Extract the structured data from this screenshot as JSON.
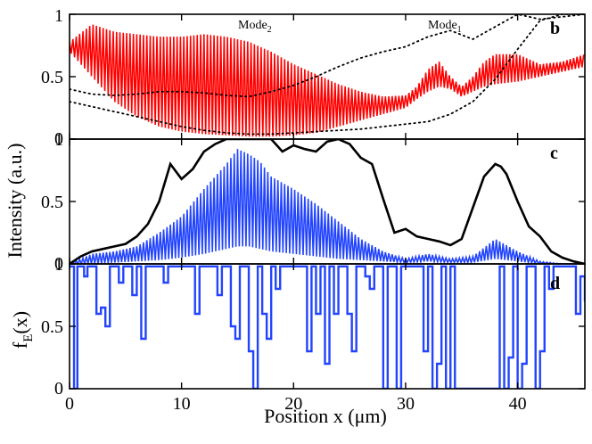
{
  "chart_data": [
    {
      "type": "line",
      "panel": "b",
      "panel_label": "b",
      "xlabel": "",
      "ylabel": "",
      "xlim": [
        0,
        46
      ],
      "ylim": [
        0,
        1
      ],
      "ytick_labels": [
        "0",
        "0.5",
        "1"
      ],
      "annotations": [
        {
          "text": "Mode",
          "sub": "2",
          "x": 18,
          "y": 0.96
        },
        {
          "text": "Mode",
          "sub": "1",
          "x": 33.5,
          "y": 0.93
        }
      ],
      "series": [
        {
          "name": "intensity (red)",
          "color": "#ff0000",
          "style": "oscillating",
          "x": [
            0,
            2,
            4,
            6,
            8,
            10,
            12,
            14,
            16,
            18,
            20,
            22,
            24,
            26,
            28,
            30,
            31,
            32,
            33,
            34,
            35,
            36,
            37,
            38,
            40,
            42,
            44,
            46
          ],
          "upper": [
            0.78,
            0.92,
            0.86,
            0.84,
            0.82,
            0.82,
            0.84,
            0.82,
            0.78,
            0.7,
            0.6,
            0.52,
            0.44,
            0.38,
            0.34,
            0.35,
            0.42,
            0.56,
            0.62,
            0.5,
            0.42,
            0.5,
            0.62,
            0.68,
            0.68,
            0.6,
            0.62,
            0.68
          ],
          "lower": [
            0.7,
            0.5,
            0.3,
            0.18,
            0.1,
            0.06,
            0.04,
            0.03,
            0.02,
            0.02,
            0.03,
            0.05,
            0.1,
            0.15,
            0.2,
            0.25,
            0.32,
            0.38,
            0.42,
            0.4,
            0.34,
            0.38,
            0.42,
            0.44,
            0.46,
            0.5,
            0.54,
            0.58
          ]
        },
        {
          "name": "mode profile (dotted upper)",
          "color": "#000000",
          "style": "dotted",
          "x": [
            0,
            2,
            4,
            6,
            8,
            10,
            12,
            14,
            16,
            18,
            20,
            22,
            24,
            26,
            28,
            30,
            32,
            34,
            36,
            38,
            40,
            42,
            44,
            46
          ],
          "y": [
            0.4,
            0.36,
            0.35,
            0.36,
            0.38,
            0.38,
            0.37,
            0.35,
            0.34,
            0.38,
            0.43,
            0.5,
            0.58,
            0.65,
            0.7,
            0.74,
            0.82,
            0.87,
            0.8,
            0.9,
            1.0,
            0.96,
            0.98,
            1.0
          ]
        },
        {
          "name": "mode profile (dotted lower)",
          "color": "#000000",
          "style": "dotted",
          "x": [
            0,
            2,
            4,
            6,
            8,
            10,
            12,
            14,
            16,
            18,
            20,
            22,
            24,
            26,
            28,
            30,
            32,
            34,
            36,
            38,
            40,
            42,
            44,
            46
          ],
          "y": [
            0.3,
            0.26,
            0.22,
            0.18,
            0.14,
            0.1,
            0.07,
            0.05,
            0.04,
            0.04,
            0.05,
            0.06,
            0.07,
            0.08,
            0.1,
            0.12,
            0.14,
            0.2,
            0.3,
            0.48,
            0.72,
            0.95,
            1.0,
            1.0
          ]
        }
      ]
    },
    {
      "type": "line",
      "panel": "c",
      "panel_label": "c",
      "xlabel": "",
      "ylabel": "Intensity (a.u.)",
      "xlim": [
        0,
        46
      ],
      "ylim": [
        0,
        1
      ],
      "ytick_labels": [
        "0",
        "0.5",
        "1"
      ],
      "series": [
        {
          "name": "intensity (blue)",
          "color": "#2244ff",
          "style": "oscillating",
          "x": [
            0,
            2,
            4,
            6,
            8,
            10,
            12,
            14,
            15,
            16,
            17,
            18,
            20,
            22,
            24,
            26,
            28,
            30,
            32,
            34,
            36,
            38,
            40,
            42,
            44,
            46
          ],
          "upper": [
            0.0,
            0.08,
            0.1,
            0.14,
            0.25,
            0.38,
            0.6,
            0.8,
            0.92,
            0.88,
            0.82,
            0.7,
            0.6,
            0.48,
            0.34,
            0.2,
            0.1,
            0.04,
            0.08,
            0.04,
            0.06,
            0.2,
            0.1,
            0.02,
            0.0,
            0.0
          ],
          "lower": [
            0.0,
            0.0,
            0.01,
            0.02,
            0.03,
            0.05,
            0.08,
            0.12,
            0.14,
            0.14,
            0.12,
            0.1,
            0.08,
            0.06,
            0.04,
            0.03,
            0.02,
            0.01,
            0.02,
            0.01,
            0.01,
            0.04,
            0.02,
            0.0,
            0.0,
            0.0
          ]
        },
        {
          "name": "envelope (black)",
          "color": "#000000",
          "style": "solid",
          "x": [
            0,
            1,
            2,
            3,
            4,
            5,
            6,
            7,
            8,
            9,
            10,
            11,
            12,
            13,
            14,
            15,
            16,
            17,
            17.5,
            18,
            19,
            20,
            21,
            22,
            23,
            24,
            25,
            26,
            27,
            28,
            29,
            30,
            31,
            32,
            33,
            34,
            35,
            36,
            37,
            38,
            38.5,
            39,
            40,
            41,
            42,
            43,
            44,
            45,
            46
          ],
          "y": [
            0.0,
            0.06,
            0.1,
            0.12,
            0.14,
            0.16,
            0.22,
            0.32,
            0.5,
            0.8,
            0.68,
            0.76,
            0.9,
            0.96,
            1.0,
            1.02,
            1.08,
            1.12,
            1.2,
            1.08,
            0.9,
            0.95,
            0.92,
            0.9,
            0.98,
            1.0,
            0.96,
            0.85,
            0.8,
            0.52,
            0.25,
            0.28,
            0.22,
            0.2,
            0.18,
            0.15,
            0.2,
            0.45,
            0.7,
            0.8,
            0.78,
            0.72,
            0.5,
            0.3,
            0.22,
            0.1,
            0.05,
            0.02,
            0.0
          ]
        }
      ]
    },
    {
      "type": "line",
      "panel": "d",
      "panel_label": "d",
      "xlabel": "Position x (μm)",
      "ylabel": "f",
      "ylabel_sub": "E",
      "ylabel_suffix": "(x)",
      "xlim": [
        0,
        46
      ],
      "ylim": [
        0,
        1
      ],
      "xtick_labels": [
        "0",
        "10",
        "20",
        "30",
        "40"
      ],
      "xtick_values": [
        0,
        10,
        20,
        30,
        40
      ],
      "ytick_labels": [
        "0",
        "0.5",
        "1"
      ],
      "series": [
        {
          "name": "f_E(x)",
          "color": "#2244ff",
          "style": "step",
          "x": [
            0,
            0.4,
            0.7,
            1.0,
            1.3,
            1.6,
            2.0,
            2.4,
            2.8,
            3.2,
            3.6,
            4.0,
            4.4,
            4.8,
            5.2,
            5.6,
            6.0,
            6.4,
            6.8,
            7.2,
            7.6,
            8.0,
            8.4,
            8.8,
            9.2,
            9.6,
            10.0,
            10.4,
            10.8,
            11.2,
            11.6,
            12.0,
            12.4,
            12.8,
            13.2,
            13.6,
            14.0,
            14.4,
            14.8,
            15.2,
            15.6,
            16.0,
            16.4,
            16.8,
            17.2,
            17.6,
            18.0,
            18.4,
            18.8,
            19.2,
            19.6,
            20.0,
            20.4,
            20.8,
            21.2,
            21.6,
            22.0,
            22.4,
            22.8,
            23.2,
            23.6,
            24.0,
            24.4,
            24.8,
            25.2,
            25.6,
            26.0,
            26.4,
            26.8,
            27.2,
            27.6,
            28.0,
            28.4,
            28.8,
            29.2,
            29.6,
            30.0,
            30.4,
            30.8,
            31.2,
            31.6,
            32.0,
            32.4,
            32.8,
            33.2,
            33.6,
            34.0,
            34.4,
            34.8,
            35.2,
            35.6,
            36.0,
            36.4,
            36.8,
            37.2,
            37.6,
            38.0,
            38.4,
            38.8,
            39.2,
            39.6,
            40.0,
            40.4,
            40.8,
            41.2,
            41.6,
            42.0,
            42.4,
            42.8,
            43.2,
            43.6,
            44.0,
            44.4,
            44.8,
            45.2,
            45.6,
            46.0
          ],
          "y": [
            0.98,
            0.0,
            0.98,
            0.98,
            0.9,
            0.98,
            0.98,
            0.6,
            0.65,
            0.5,
            0.98,
            0.98,
            0.85,
            0.98,
            0.98,
            0.75,
            0.98,
            0.4,
            0.98,
            0.98,
            0.98,
            0.98,
            0.85,
            0.98,
            0.98,
            0.98,
            0.98,
            0.98,
            0.98,
            0.6,
            0.98,
            0.98,
            0.98,
            0.98,
            0.75,
            0.98,
            0.98,
            0.5,
            0.4,
            0.98,
            0.98,
            0.3,
            0.0,
            0.98,
            0.6,
            0.4,
            0.98,
            0.8,
            0.98,
            0.98,
            0.98,
            0.98,
            0.98,
            0.98,
            0.3,
            0.98,
            0.6,
            0.98,
            0.2,
            0.98,
            0.6,
            0.98,
            0.98,
            0.6,
            0.3,
            0.98,
            0.98,
            0.9,
            0.8,
            0.98,
            0.98,
            0.0,
            0.98,
            0.98,
            0.0,
            0.98,
            0.98,
            0.98,
            0.98,
            0.98,
            0.3,
            0.98,
            0.0,
            0.2,
            0.98,
            0.0,
            0.98,
            0.0,
            0.0,
            0.0,
            0.0,
            0.0,
            0.0,
            0.0,
            0.0,
            0.0,
            0.0,
            0.98,
            0.0,
            0.25,
            0.98,
            0.0,
            0.2,
            0.98,
            0.98,
            0.0,
            0.3,
            0.98,
            0.8,
            0.98,
            0.98,
            0.98,
            0.98,
            0.98,
            0.6,
            0.9,
            0.7
          ]
        }
      ]
    }
  ]
}
